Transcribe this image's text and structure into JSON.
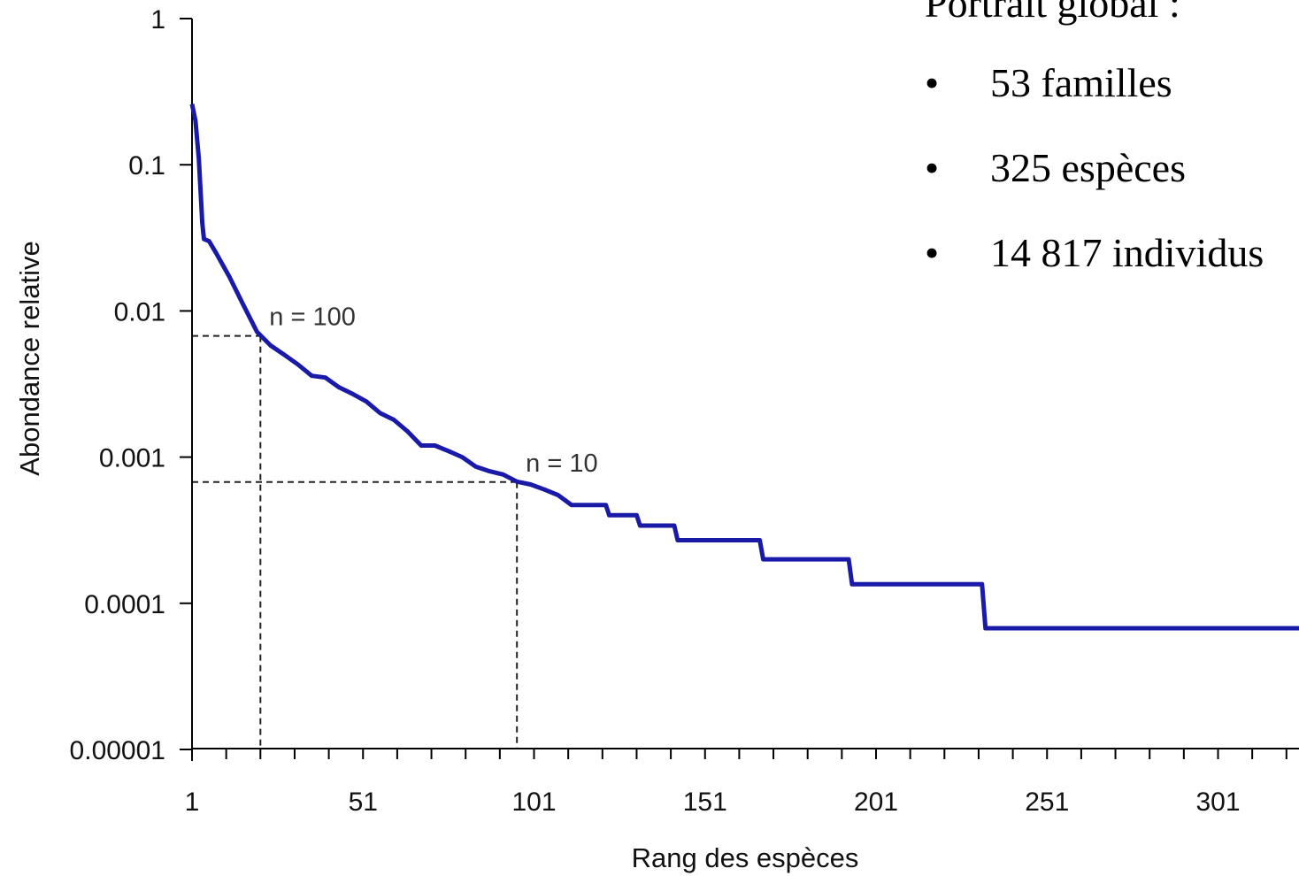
{
  "side_panel": {
    "heading": "Portrait global :",
    "bullet": "•",
    "items": [
      {
        "text": "53 familles"
      },
      {
        "text": "325 espèces"
      },
      {
        "text": "14 817 individus"
      }
    ]
  },
  "chart_data": {
    "type": "line",
    "xlabel": "Rang des espèces",
    "ylabel": "Abondance relative",
    "yscale": "log",
    "xlim": [
      1,
      325
    ],
    "ylim": [
      1e-05,
      1
    ],
    "x_ticks": [
      "1",
      "51",
      "101",
      "151",
      "201",
      "251",
      "301"
    ],
    "y_ticks": [
      "1",
      "0.1",
      "0.01",
      "0.001",
      "0.0001",
      "0.00001"
    ],
    "x_tick_values": [
      1,
      51,
      101,
      151,
      201,
      251,
      301
    ],
    "y_tick_values": [
      1,
      0.1,
      0.01,
      0.001,
      0.0001,
      1e-05
    ],
    "minor_x_step": 10,
    "line_color": "#1a1aa8",
    "series": [
      {
        "values": [
          [
            1,
            0.26
          ],
          [
            2,
            0.2
          ],
          [
            3,
            0.11
          ],
          [
            4,
            0.04
          ],
          [
            4.5,
            0.031
          ],
          [
            6,
            0.03
          ],
          [
            8,
            0.025
          ],
          [
            12,
            0.017
          ],
          [
            16,
            0.011
          ],
          [
            20,
            0.0072
          ],
          [
            24,
            0.0058
          ],
          [
            28,
            0.005
          ],
          [
            32,
            0.0043
          ],
          [
            36,
            0.0036
          ],
          [
            40,
            0.0035
          ],
          [
            44,
            0.003
          ],
          [
            48,
            0.0027
          ],
          [
            52,
            0.0024
          ],
          [
            56,
            0.002
          ],
          [
            60,
            0.0018
          ],
          [
            64,
            0.0015
          ],
          [
            68,
            0.0012
          ],
          [
            72,
            0.0012
          ],
          [
            76,
            0.0011
          ],
          [
            80,
            0.001
          ],
          [
            84,
            0.00086
          ],
          [
            88,
            0.0008
          ],
          [
            92,
            0.00076
          ],
          [
            96,
            0.00068
          ],
          [
            100,
            0.00065
          ],
          [
            104,
            0.0006
          ],
          [
            108,
            0.00055
          ],
          [
            112,
            0.00047
          ],
          [
            116,
            0.00047
          ],
          [
            122,
            0.00047
          ],
          [
            123,
            0.0004
          ],
          [
            131,
            0.0004
          ],
          [
            132,
            0.00034
          ],
          [
            142,
            0.00034
          ],
          [
            143,
            0.00027
          ],
          [
            167,
            0.00027
          ],
          [
            168,
            0.0002
          ],
          [
            193,
            0.0002
          ],
          [
            194,
            0.000135
          ],
          [
            232,
            0.000135
          ],
          [
            233,
            6.75e-05
          ],
          [
            325,
            6.75e-05
          ]
        ]
      }
    ],
    "reference_lines": [
      {
        "label": "n = 100",
        "x": 21,
        "y": 0.00675
      },
      {
        "label": "n = 10",
        "x": 96,
        "y": 0.000675
      }
    ],
    "grid": false
  }
}
